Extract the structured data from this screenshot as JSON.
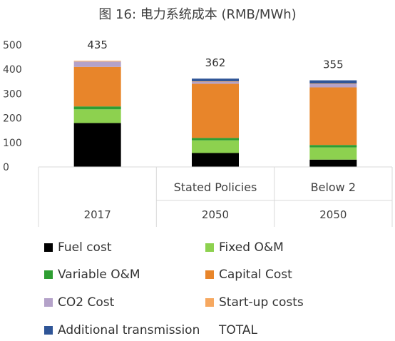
{
  "chart_data": {
    "type": "bar",
    "stacked": true,
    "title": "图 16: 电力系统成本 (RMB/MWh)",
    "categories": [
      {
        "label_top": "",
        "label_bottom": "2017"
      },
      {
        "label_top": "Stated Policies",
        "label_bottom": "2050"
      },
      {
        "label_top": "Below 2",
        "label_bottom": "2050"
      }
    ],
    "ylim": [
      0,
      500
    ],
    "yticks": [
      0,
      100,
      200,
      300,
      400,
      500
    ],
    "grid": false,
    "legend_position": "bottom",
    "series": [
      {
        "name": "Fuel cost",
        "color": "#000000",
        "values": [
          180,
          57,
          30
        ]
      },
      {
        "name": "Fixed O&M",
        "color": "#8DD14F",
        "values": [
          56,
          52,
          50
        ]
      },
      {
        "name": "Variable O&M",
        "color": "#2E9E32",
        "values": [
          12,
          10,
          10
        ]
      },
      {
        "name": "Capital Cost",
        "color": "#E8852A",
        "values": [
          162,
          222,
          236
        ]
      },
      {
        "name": "CO2 Cost",
        "color": "#B4A2C9",
        "values": [
          22,
          8,
          14
        ]
      },
      {
        "name": "Start-up costs",
        "color": "#F6A860",
        "values": [
          3,
          2,
          2
        ]
      },
      {
        "name": "Additional transmission",
        "color": "#2F5597",
        "values": [
          0,
          11,
          13
        ]
      },
      {
        "name": "TOTAL",
        "color": null,
        "values": [
          435,
          362,
          355
        ]
      }
    ]
  },
  "legend_labels": {
    "fuel": "Fuel cost",
    "fixed": "Fixed O&M",
    "variable": "Variable O&M",
    "capital": "Capital Cost",
    "co2": "CO2 Cost",
    "startup": "Start-up costs",
    "transmission": "Additional transmission",
    "total": "TOTAL"
  }
}
